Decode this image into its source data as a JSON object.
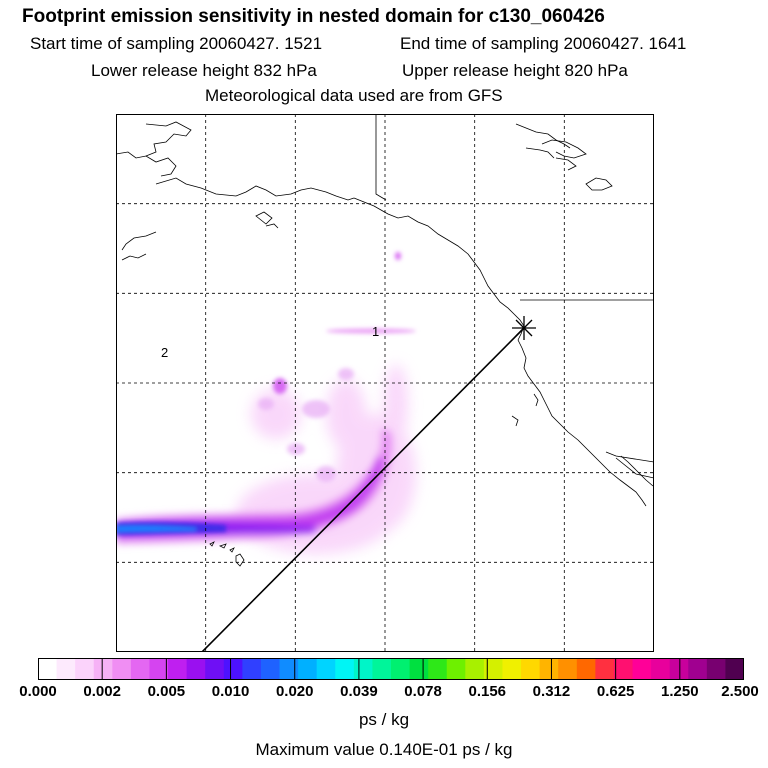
{
  "header": {
    "title": "Footprint emission sensitivity in nested domain for c130_060426",
    "start_label": "Start time of sampling 20060427.  1521",
    "end_label": "End time of sampling 20060427.  1641",
    "lower_label": "Lower release height  832 hPa",
    "upper_label": "Upper release height  820 hPa",
    "met_label": "Meteorological data used are from GFS"
  },
  "map": {
    "labels": [
      "1",
      "2"
    ],
    "release_marker": "star-marker-icon"
  },
  "colorbar": {
    "ticks": [
      "0.000",
      "0.002",
      "0.005",
      "0.010",
      "0.020",
      "0.039",
      "0.078",
      "0.156",
      "0.312",
      "0.625",
      "1.250",
      "2.500"
    ],
    "colors": [
      "#ffffff",
      "#fdeafd",
      "#fbd3fb",
      "#f6b2f6",
      "#f08ef3",
      "#e467f2",
      "#d544f0",
      "#bf1ff0",
      "#9a10f0",
      "#6f0ff5",
      "#4d12ff",
      "#3040ff",
      "#1f62ff",
      "#108cff",
      "#00b0ff",
      "#00d4ff",
      "#00f5f5",
      "#00f5c8",
      "#00f59a",
      "#00f070",
      "#00e040",
      "#2ee818",
      "#6ef000",
      "#a8f000",
      "#d4f000",
      "#f0f000",
      "#ffd800",
      "#ffb400",
      "#ff9000",
      "#ff6800",
      "#ff3040",
      "#ff1070",
      "#ff0098",
      "#e8009c",
      "#c8009c",
      "#a00090",
      "#780070",
      "#500050"
    ],
    "units": "ps / kg",
    "max_label": "Maximum value  0.140E-01 ps / kg"
  }
}
